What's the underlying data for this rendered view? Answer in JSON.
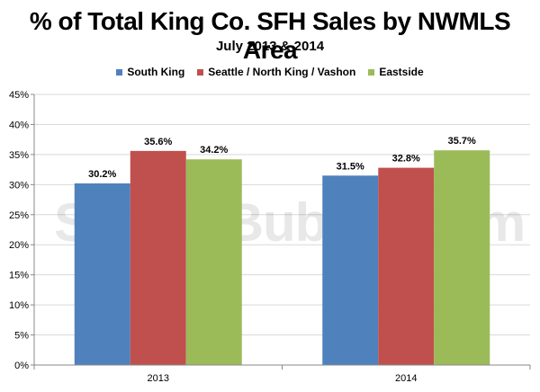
{
  "chart_data": {
    "type": "bar",
    "title": "% of Total King Co. SFH Sales by NWMLS Area",
    "subtitle": "July 2013 & 2014",
    "categories": [
      "2013",
      "2014"
    ],
    "series": [
      {
        "name": "South King",
        "color": "#4f81bd",
        "values": [
          30.2,
          31.5
        ],
        "labels": [
          "30.2%",
          "31.5%"
        ]
      },
      {
        "name": "Seattle / North King / Vashon",
        "color": "#c0504d",
        "values": [
          35.6,
          32.8
        ],
        "labels": [
          "35.6%",
          "32.8%"
        ]
      },
      {
        "name": "Eastside",
        "color": "#9bbb59",
        "values": [
          34.2,
          35.7
        ],
        "labels": [
          "34.2%",
          "35.7%"
        ]
      }
    ],
    "ylim": [
      0,
      45
    ],
    "yticks": [
      "0%",
      "5%",
      "10%",
      "15%",
      "20%",
      "25%",
      "30%",
      "35%",
      "40%",
      "45%"
    ],
    "grid": true,
    "legend": "top"
  },
  "watermark": "SeattleBubble.com"
}
